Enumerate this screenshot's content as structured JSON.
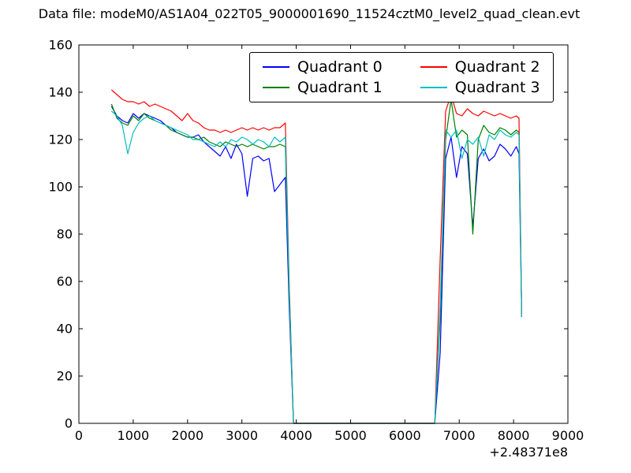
{
  "title": "Data file: modeM0/AS1A04_022T05_9000001690_11524cztM0_level2_quad_clean.evt",
  "chart_data": {
    "type": "line",
    "title": "Data file: modeM0/AS1A04_022T05_9000001690_11524cztM0_level2_quad_clean.evt",
    "xlabel": "",
    "ylabel": "",
    "x_offset_label": "+2.48371e8",
    "xlim": [
      0,
      9000
    ],
    "ylim": [
      0,
      160
    ],
    "x_ticks": [
      0,
      1000,
      2000,
      3000,
      4000,
      5000,
      6000,
      7000,
      8000,
      9000
    ],
    "y_ticks": [
      0,
      20,
      40,
      60,
      80,
      100,
      120,
      140,
      160
    ],
    "grid": false,
    "legend_position": "upper center",
    "legend_columns": 2,
    "x": [
      600,
      700,
      800,
      900,
      1000,
      1100,
      1200,
      1300,
      1400,
      1500,
      1600,
      1700,
      1800,
      1900,
      2000,
      2100,
      2200,
      2300,
      2400,
      2500,
      2600,
      2700,
      2800,
      2900,
      3000,
      3100,
      3200,
      3300,
      3400,
      3500,
      3600,
      3700,
      3800,
      3870,
      3950,
      4100,
      6550,
      6650,
      6750,
      6850,
      6950,
      7050,
      7150,
      7250,
      7350,
      7450,
      7550,
      7650,
      7750,
      7850,
      7950,
      8050,
      8100,
      8150
    ],
    "series": [
      {
        "name": "Quadrant 0",
        "color": "#0000ff",
        "values": [
          134,
          130,
          128,
          127,
          131,
          129,
          131,
          130,
          129,
          128,
          126,
          125,
          123,
          122,
          121,
          121,
          122,
          119,
          117,
          115,
          113,
          117,
          112,
          118,
          114,
          96,
          112,
          113,
          111,
          112,
          98,
          101,
          104,
          50,
          0,
          0,
          0,
          30,
          112,
          121,
          104,
          117,
          114,
          83,
          112,
          116,
          111,
          113,
          118,
          116,
          113,
          117,
          114,
          45
        ]
      },
      {
        "name": "Quadrant 1",
        "color": "#007f00",
        "values": [
          135,
          129,
          127,
          126,
          130,
          128,
          131,
          129,
          128,
          127,
          126,
          124,
          123,
          122,
          121,
          121,
          120,
          121,
          119,
          118,
          117,
          119,
          118,
          117,
          118,
          117,
          118,
          117,
          116,
          117,
          117,
          118,
          117,
          55,
          0,
          0,
          0,
          45,
          120,
          137,
          121,
          124,
          122,
          80,
          120,
          126,
          123,
          122,
          125,
          124,
          122,
          124,
          123,
          46
        ]
      },
      {
        "name": "Quadrant 2",
        "color": "#ff0000",
        "values": [
          141,
          139,
          137,
          136,
          136,
          135,
          136,
          134,
          135,
          134,
          133,
          132,
          130,
          128,
          131,
          128,
          127,
          125,
          124,
          124,
          123,
          124,
          123,
          124,
          125,
          124,
          125,
          124,
          125,
          124,
          125,
          125,
          127,
          60,
          0,
          0,
          0,
          70,
          132,
          139,
          131,
          130,
          133,
          131,
          130,
          132,
          131,
          130,
          131,
          130,
          129,
          130,
          129,
          45
        ]
      },
      {
        "name": "Quadrant 3",
        "color": "#00bfbf",
        "values": [
          132,
          130,
          126,
          114,
          123,
          127,
          129,
          130,
          128,
          127,
          126,
          125,
          124,
          123,
          122,
          120,
          120,
          119,
          118,
          117,
          119,
          117,
          120,
          119,
          121,
          120,
          118,
          120,
          119,
          117,
          121,
          119,
          121,
          58,
          0,
          0,
          0,
          50,
          124,
          121,
          124,
          112,
          120,
          118,
          121,
          113,
          122,
          120,
          124,
          122,
          121,
          123,
          122,
          45
        ]
      }
    ]
  }
}
